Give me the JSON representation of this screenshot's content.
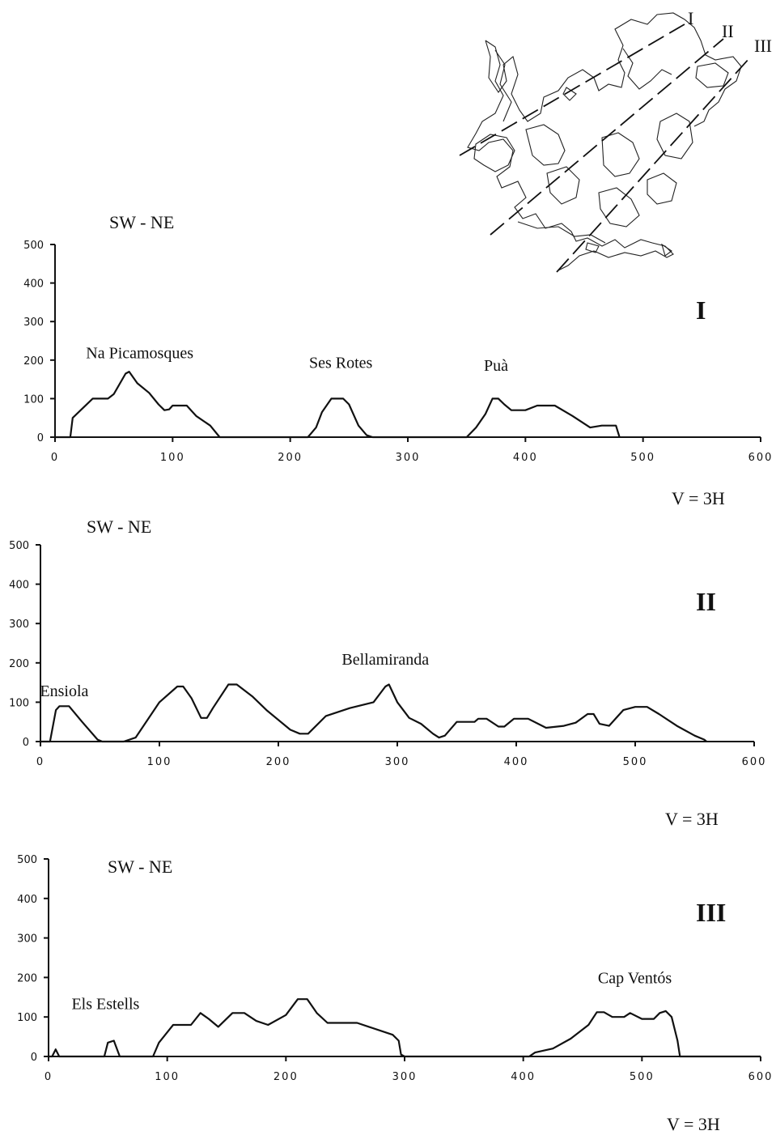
{
  "chart_data": [
    {
      "type": "line",
      "roman": "I",
      "direction": "SW - NE",
      "scale_note": "V = 3H",
      "xlim": [
        0,
        600
      ],
      "ylim": [
        0,
        500
      ],
      "xticks": [
        "0",
        "100",
        "200",
        "300",
        "400",
        "500",
        "600"
      ],
      "yticks": [
        "0",
        "100",
        "200",
        "300",
        "400",
        "500"
      ],
      "annotations": [
        {
          "text": "Na Picamosques",
          "x": 72,
          "y": 205
        },
        {
          "text": "Ses Rotes",
          "x": 243,
          "y": 180
        },
        {
          "text": "Puà",
          "x": 375,
          "y": 172
        }
      ],
      "series": [
        {
          "x": [
            0,
            13,
            15,
            32,
            45,
            50,
            60,
            63,
            70,
            80,
            88,
            93,
            97,
            100,
            112,
            120,
            132,
            140,
            150,
            200,
            215,
            222,
            227,
            235,
            245,
            250,
            258,
            265,
            270,
            300,
            350,
            358,
            366,
            372,
            377,
            382,
            388,
            400,
            410,
            425,
            440,
            455,
            465,
            477,
            480
          ],
          "y": [
            0,
            0,
            50,
            100,
            100,
            112,
            165,
            170,
            140,
            115,
            85,
            70,
            72,
            82,
            82,
            55,
            30,
            0,
            0,
            0,
            0,
            25,
            65,
            100,
            100,
            85,
            30,
            5,
            0,
            0,
            0,
            25,
            60,
            100,
            100,
            85,
            70,
            70,
            82,
            82,
            55,
            25,
            30,
            30,
            0
          ]
        }
      ]
    },
    {
      "type": "line",
      "roman": "II",
      "direction": "SW - NE",
      "scale_note": "V = 3H",
      "xlim": [
        0,
        600
      ],
      "ylim": [
        0,
        500
      ],
      "xticks": [
        "0",
        "100",
        "200",
        "300",
        "400",
        "500",
        "600"
      ],
      "yticks": [
        "0",
        "100",
        "200",
        "300",
        "400",
        "500"
      ],
      "annotations": [
        {
          "text": "Ensiola",
          "x": 20,
          "y": 115
        },
        {
          "text": "Bellamiranda",
          "x": 290,
          "y": 195
        }
      ],
      "series": [
        {
          "x": [
            0,
            8,
            13,
            16,
            24,
            35,
            48,
            52,
            70,
            80,
            100,
            115,
            120,
            127,
            135,
            140,
            145,
            158,
            165,
            178,
            190,
            210,
            218,
            225,
            240,
            260,
            280,
            290,
            293,
            300,
            310,
            320,
            330,
            335,
            340,
            350,
            365,
            368,
            375,
            385,
            390,
            398,
            410,
            425,
            440,
            450,
            460,
            465,
            470,
            478,
            490,
            500,
            510,
            520,
            535,
            550,
            558,
            560
          ],
          "y": [
            0,
            0,
            80,
            90,
            90,
            50,
            5,
            0,
            0,
            10,
            100,
            140,
            140,
            110,
            60,
            60,
            85,
            145,
            145,
            115,
            80,
            30,
            20,
            20,
            65,
            85,
            100,
            140,
            145,
            100,
            60,
            45,
            20,
            10,
            15,
            50,
            50,
            58,
            58,
            38,
            38,
            58,
            58,
            35,
            40,
            48,
            70,
            70,
            45,
            40,
            80,
            88,
            88,
            70,
            40,
            15,
            5,
            0
          ]
        }
      ]
    },
    {
      "type": "line",
      "roman": "III",
      "direction": "SW - NE",
      "scale_note": "V = 3H",
      "xlim": [
        0,
        600
      ],
      "ylim": [
        0,
        500
      ],
      "xticks": [
        "0",
        "100",
        "200",
        "300",
        "400",
        "500",
        "600"
      ],
      "yticks": [
        "0",
        "100",
        "200",
        "300",
        "400",
        "500"
      ],
      "annotations": [
        {
          "text": "Els Estells",
          "x": 48,
          "y": 120
        },
        {
          "text": "Cap Ventós",
          "x": 494,
          "y": 185
        }
      ],
      "series": [
        {
          "x": [
            0,
            3,
            6,
            9,
            12,
            30,
            47,
            50,
            55,
            60,
            88,
            93,
            105,
            120,
            128,
            135,
            143,
            155,
            165,
            175,
            185,
            200,
            210,
            218,
            226,
            235,
            260,
            270,
            290,
            295,
            297,
            300,
            350,
            405,
            410,
            425,
            440,
            455,
            462,
            468,
            475,
            485,
            490,
            500,
            510,
            515,
            520,
            525,
            530,
            532,
            600
          ],
          "y": [
            0,
            0,
            18,
            0,
            0,
            0,
            0,
            35,
            40,
            0,
            0,
            35,
            80,
            80,
            110,
            95,
            75,
            110,
            110,
            90,
            80,
            105,
            145,
            145,
            110,
            85,
            85,
            75,
            55,
            40,
            5,
            0,
            0,
            0,
            10,
            20,
            45,
            80,
            112,
            112,
            100,
            100,
            110,
            95,
            95,
            110,
            115,
            100,
            40,
            0,
            0
          ]
        }
      ]
    }
  ],
  "map": {
    "line_labels": [
      "I",
      "II",
      "III"
    ]
  }
}
